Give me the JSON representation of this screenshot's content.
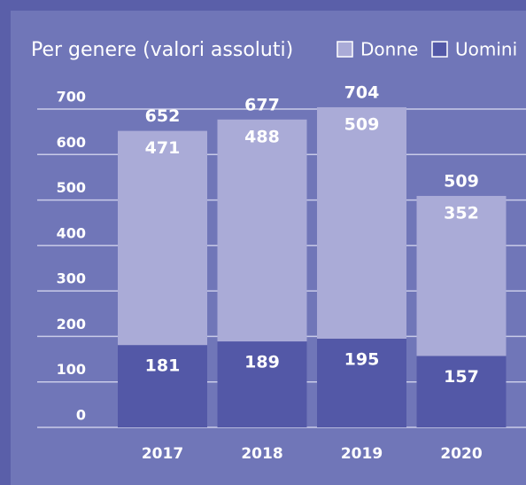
{
  "chart_data": {
    "type": "stacked_bar",
    "title": "Per genere (valori assoluti)",
    "categories": [
      "2017",
      "2018",
      "2019",
      "2020"
    ],
    "series": [
      {
        "name": "Uomini",
        "color": "#5358a7",
        "values": [
          181,
          189,
          195,
          157
        ]
      },
      {
        "name": "Donne",
        "color": "#aaabd7",
        "values": [
          471,
          488,
          509,
          352
        ]
      }
    ],
    "legend_order": [
      "Donne",
      "Uomini"
    ],
    "totals": [
      652,
      677,
      704,
      509
    ],
    "ylim": [
      0,
      700
    ],
    "yticks": [
      0,
      100,
      200,
      300,
      400,
      500,
      600,
      700
    ],
    "grid": true
  }
}
